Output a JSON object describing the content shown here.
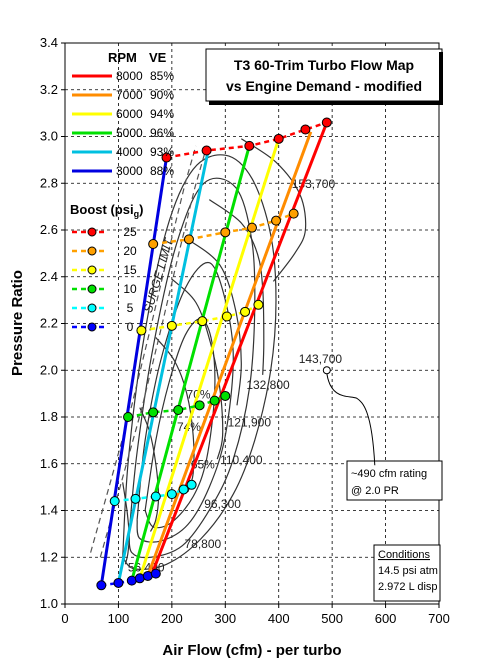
{
  "chart_data": {
    "type": "line",
    "title": [
      "T3 60-Trim Turbo Flow Map",
      "vs Engine Demand - modified"
    ],
    "xlabel": "Air Flow (cfm) - per turbo",
    "ylabel": "Pressure Ratio",
    "xlim": [
      0,
      700
    ],
    "ylim": [
      1.0,
      3.4
    ],
    "xticks": [
      "0",
      "100",
      "200",
      "300",
      "400",
      "500",
      "600",
      "700"
    ],
    "yticks": [
      "1.0",
      "1.2",
      "1.4",
      "1.6",
      "1.8",
      "2.0",
      "2.2",
      "2.4",
      "2.6",
      "2.8",
      "3.0",
      "3.2",
      "3.4"
    ],
    "grid": true,
    "rpm_header": "RPM",
    "ve_header": "VE",
    "boost_header": "Boost (psi",
    "boost_header_sub": "g",
    "boost_header_end": ")",
    "rpm_series": [
      {
        "rpm": "8000",
        "ve": "85%",
        "color": "#ff0000",
        "points": [
          [
            163,
            1.13
          ],
          [
            490,
            3.06
          ]
        ]
      },
      {
        "rpm": "7000",
        "ve": "90%",
        "color": "#ff8c00",
        "points": [
          [
            155,
            1.12
          ],
          [
            460,
            3.02
          ]
        ]
      },
      {
        "rpm": "6000",
        "ve": "94%",
        "color": "#ffff00",
        "points": [
          [
            140,
            1.11
          ],
          [
            400,
            2.99
          ]
        ]
      },
      {
        "rpm": "5000",
        "ve": "96%",
        "color": "#00e000",
        "points": [
          [
            125,
            1.1
          ],
          [
            345,
            2.96
          ]
        ]
      },
      {
        "rpm": "4000",
        "ve": "93%",
        "color": "#00c0e0",
        "points": [
          [
            100,
            1.09
          ],
          [
            268,
            2.94
          ]
        ]
      },
      {
        "rpm": "3000",
        "ve": "88%",
        "color": "#0000e0",
        "points": [
          [
            68,
            1.08
          ],
          [
            190,
            2.91
          ]
        ]
      }
    ],
    "boost_series": [
      {
        "boost": "25",
        "color": "#ff0000",
        "points": [
          [
            190,
            2.91
          ],
          [
            265,
            2.94
          ],
          [
            345,
            2.96
          ],
          [
            400,
            2.99
          ],
          [
            450,
            3.03
          ],
          [
            490,
            3.06
          ]
        ]
      },
      {
        "boost": "20",
        "color": "#ffa000",
        "points": [
          [
            165,
            2.54
          ],
          [
            232,
            2.56
          ],
          [
            300,
            2.59
          ],
          [
            350,
            2.61
          ],
          [
            395,
            2.64
          ],
          [
            428,
            2.67
          ]
        ]
      },
      {
        "boost": "15",
        "color": "#ffff00",
        "points": [
          [
            143,
            2.17
          ],
          [
            200,
            2.19
          ],
          [
            257,
            2.21
          ],
          [
            303,
            2.23
          ],
          [
            337,
            2.25
          ],
          [
            362,
            2.28
          ]
        ]
      },
      {
        "boost": "10",
        "color": "#00e000",
        "points": [
          [
            118,
            1.8
          ],
          [
            165,
            1.82
          ],
          [
            212,
            1.83
          ],
          [
            252,
            1.85
          ],
          [
            280,
            1.87
          ],
          [
            300,
            1.89
          ]
        ]
      },
      {
        "boost": "5",
        "color": "#00ffff",
        "points": [
          [
            93,
            1.44
          ],
          [
            132,
            1.45
          ],
          [
            170,
            1.46
          ],
          [
            200,
            1.47
          ],
          [
            222,
            1.49
          ],
          [
            237,
            1.51
          ]
        ]
      },
      {
        "boost": "0",
        "color": "#0000ff",
        "points": [
          [
            68,
            1.08
          ],
          [
            100,
            1.09
          ],
          [
            125,
            1.1
          ],
          [
            140,
            1.11
          ],
          [
            155,
            1.12
          ],
          [
            170,
            1.13
          ]
        ]
      }
    ],
    "speed_lines": [
      {
        "label": "153,700",
        "points": [
          [
            330,
            2.99
          ],
          [
            395,
            2.89
          ],
          [
            440,
            2.75
          ],
          [
            450,
            2.6
          ],
          [
            430,
            2.5
          ],
          [
            390,
            2.38
          ]
        ]
      },
      {
        "label": "132,800",
        "points": [
          [
            270,
            2.73
          ],
          [
            330,
            2.63
          ],
          [
            360,
            2.5
          ],
          [
            370,
            2.35
          ],
          [
            372,
            2.12
          ],
          [
            370,
            1.98
          ]
        ]
      },
      {
        "label": "121,900",
        "points": [
          [
            230,
            2.56
          ],
          [
            290,
            2.45
          ],
          [
            320,
            2.25
          ],
          [
            330,
            2.03
          ],
          [
            322,
            1.85
          ]
        ]
      },
      {
        "label": "110,400",
        "points": [
          [
            200,
            2.39
          ],
          [
            245,
            2.29
          ],
          [
            272,
            2.12
          ],
          [
            290,
            1.92
          ],
          [
            295,
            1.72
          ],
          [
            285,
            1.62
          ]
        ]
      },
      {
        "label": "96,300",
        "points": [
          [
            170,
            2.14
          ],
          [
            205,
            2.04
          ],
          [
            228,
            1.9
          ],
          [
            240,
            1.72
          ],
          [
            240,
            1.56
          ],
          [
            230,
            1.48
          ]
        ]
      },
      {
        "label": "78,800",
        "points": [
          [
            140,
            1.84
          ],
          [
            158,
            1.74
          ],
          [
            170,
            1.6
          ],
          [
            175,
            1.46
          ],
          [
            170,
            1.36
          ],
          [
            160,
            1.31
          ]
        ]
      },
      {
        "label": "56,400",
        "points": [
          [
            108,
            1.52
          ],
          [
            116,
            1.4
          ],
          [
            120,
            1.3
          ],
          [
            118,
            1.22
          ],
          [
            113,
            1.17
          ]
        ]
      }
    ],
    "speed_label_143": "143,700",
    "efficiency_islands": [
      {
        "label": "74%",
        "points": [
          [
            150,
            1.4
          ],
          [
            170,
            1.7
          ],
          [
            195,
            1.95
          ],
          [
            225,
            2.15
          ],
          [
            255,
            2.22
          ],
          [
            275,
            2.12
          ],
          [
            280,
            1.9
          ],
          [
            265,
            1.62
          ],
          [
            240,
            1.46
          ],
          [
            200,
            1.35
          ],
          [
            165,
            1.33
          ],
          [
            150,
            1.4
          ]
        ]
      },
      {
        "label": "70%",
        "points": [
          [
            135,
            1.36
          ],
          [
            150,
            1.7
          ],
          [
            180,
            2.05
          ],
          [
            225,
            2.35
          ],
          [
            270,
            2.46
          ],
          [
            300,
            2.3
          ],
          [
            315,
            2.05
          ],
          [
            300,
            1.72
          ],
          [
            270,
            1.5
          ],
          [
            230,
            1.34
          ],
          [
            180,
            1.27
          ],
          [
            140,
            1.28
          ],
          [
            135,
            1.36
          ]
        ]
      },
      {
        "label": "65%",
        "points": [
          [
            120,
            1.3
          ],
          [
            135,
            1.65
          ],
          [
            165,
            2.1
          ],
          [
            210,
            2.55
          ],
          [
            260,
            2.8
          ],
          [
            320,
            2.78
          ],
          [
            350,
            2.55
          ],
          [
            355,
            2.25
          ],
          [
            345,
            1.92
          ],
          [
            315,
            1.62
          ],
          [
            275,
            1.42
          ],
          [
            220,
            1.25
          ],
          [
            160,
            1.2
          ],
          [
            125,
            1.22
          ],
          [
            120,
            1.3
          ]
        ]
      },
      {
        "label": "",
        "points": [
          [
            108,
            1.2
          ],
          [
            118,
            1.6
          ],
          [
            145,
            2.1
          ],
          [
            190,
            2.6
          ],
          [
            240,
            2.86
          ],
          [
            300,
            2.92
          ],
          [
            350,
            2.82
          ],
          [
            385,
            2.58
          ],
          [
            395,
            2.3
          ],
          [
            385,
            2.0
          ],
          [
            355,
            1.7
          ],
          [
            315,
            1.47
          ],
          [
            255,
            1.28
          ],
          [
            190,
            1.17
          ],
          [
            130,
            1.15
          ],
          [
            108,
            1.2
          ]
        ]
      }
    ],
    "surge_line": {
      "label": "SURGE LIMIT",
      "points": [
        [
          48,
          1.22
        ],
        [
          80,
          1.48
        ],
        [
          125,
          1.85
        ],
        [
          160,
          2.18
        ],
        [
          195,
          2.52
        ],
        [
          225,
          2.8
        ],
        [
          245,
          2.96
        ]
      ]
    },
    "annotation": {
      "lines": [
        "~490 cfm rating",
        "@ 2.0 PR"
      ],
      "target": [
        490,
        2.0
      ],
      "point": [
        490,
        2.0
      ]
    },
    "conditions": {
      "title": "Conditions",
      "lines": [
        "14.5 psi atm",
        "2.972 L disp"
      ]
    }
  }
}
